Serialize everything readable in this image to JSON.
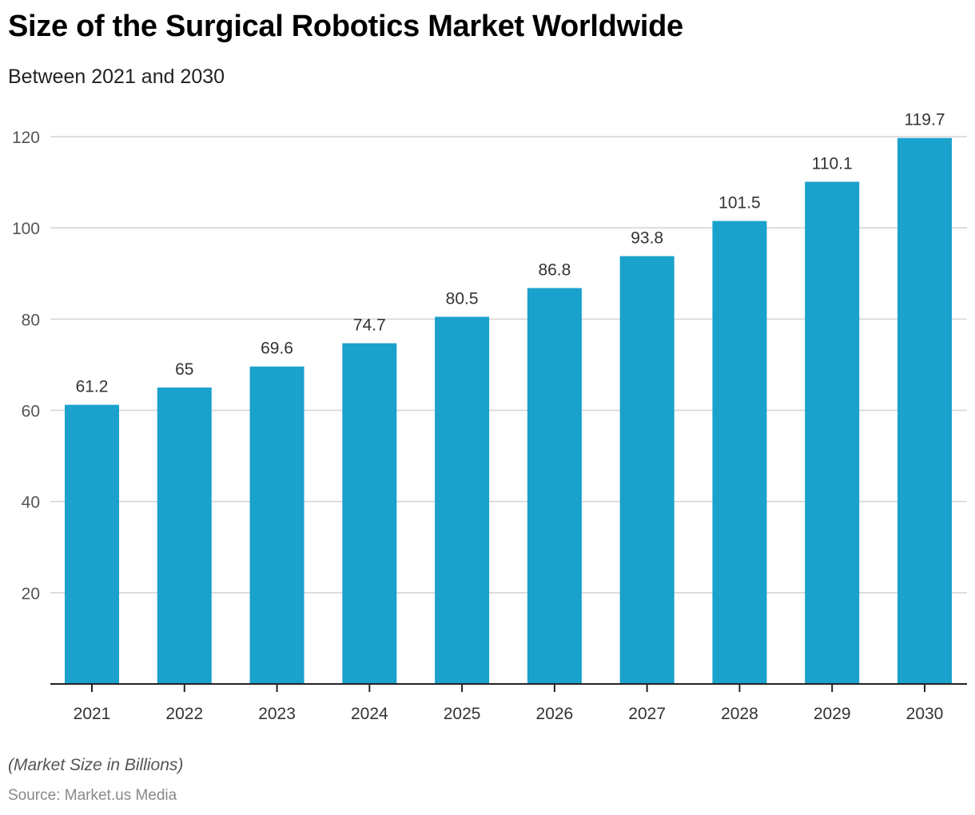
{
  "header": {
    "title": "Size of the Surgical Robotics Market Worldwide",
    "subtitle": "Between 2021 and 2030"
  },
  "footer": {
    "note": "(Market Size in Billions)",
    "source": "Source: Market.us Media"
  },
  "colors": {
    "bar": "#1aa1cc",
    "grid": "#d3d3d3",
    "axis": "#222222",
    "tick_label": "#555555",
    "data_label": "#333333"
  },
  "chart_data": {
    "type": "bar",
    "title": "Size of the Surgical Robotics Market Worldwide",
    "subtitle": "Between 2021 and 2030",
    "xlabel": "",
    "ylabel": "Market Size in Billions",
    "categories": [
      "2021",
      "2022",
      "2023",
      "2024",
      "2025",
      "2026",
      "2027",
      "2028",
      "2029",
      "2030"
    ],
    "values": [
      61.2,
      65,
      69.6,
      74.7,
      80.5,
      86.8,
      93.8,
      101.5,
      110.1,
      119.7
    ],
    "data_labels": [
      "61.2",
      "65",
      "69.6",
      "74.7",
      "80.5",
      "86.8",
      "93.8",
      "101.5",
      "110.1",
      "119.7"
    ],
    "ylim": [
      0,
      120
    ],
    "yticks": [
      20,
      40,
      60,
      80,
      100,
      120
    ],
    "grid": true,
    "legend": "none"
  }
}
